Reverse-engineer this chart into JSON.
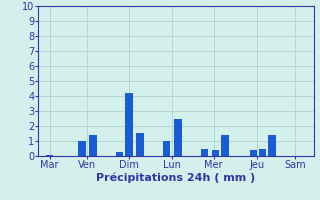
{
  "bar_data": [
    [
      0.0,
      0.1
    ],
    [
      0.85,
      1.0
    ],
    [
      1.15,
      1.4
    ],
    [
      1.85,
      0.25
    ],
    [
      2.1,
      4.2
    ],
    [
      2.4,
      1.55
    ],
    [
      3.1,
      1.0
    ],
    [
      3.4,
      2.5
    ],
    [
      4.1,
      0.5
    ],
    [
      4.4,
      0.4
    ],
    [
      4.65,
      1.4
    ],
    [
      5.4,
      0.4
    ],
    [
      5.65,
      0.5
    ],
    [
      5.9,
      1.4
    ]
  ],
  "bar_width": 0.2,
  "day_positions": [
    0.0,
    1.0,
    2.1,
    3.25,
    4.35,
    5.5,
    6.5
  ],
  "day_labels": [
    "Mar",
    "Ven",
    "Dim",
    "Lun",
    "Mer",
    "Jeu",
    "Sam"
  ],
  "xlabel": "Précipitations 24h ( mm )",
  "ylim": [
    0,
    10
  ],
  "yticks": [
    0,
    1,
    2,
    3,
    4,
    5,
    6,
    7,
    8,
    9,
    10
  ],
  "xlim": [
    -0.3,
    7.0
  ],
  "bar_color": "#1a5cd6",
  "bg_color": "#d4f0ec",
  "grid_color": "#aacccc",
  "axis_color": "#3333aa",
  "tick_color": "#3333aa",
  "label_color": "#3333aa",
  "tick_fontsize": 7.0,
  "xlabel_fontsize": 8.0
}
